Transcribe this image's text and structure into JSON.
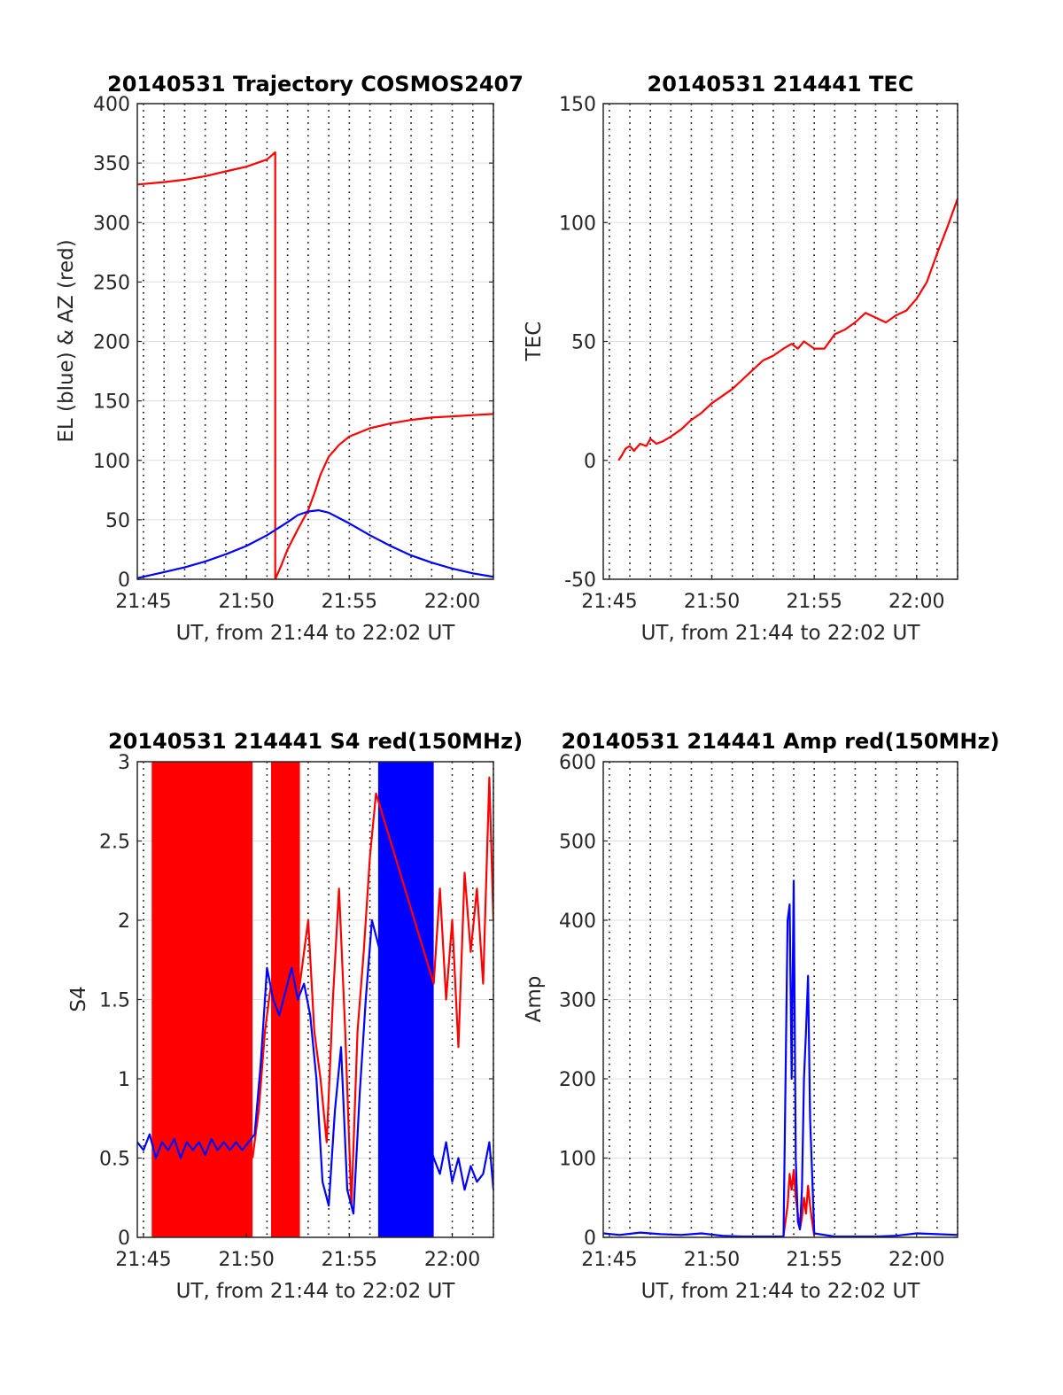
{
  "chart_data": [
    {
      "id": "traj",
      "type": "line",
      "title": "20140531 Trajectory COSMOS2407",
      "xlabel": "UT, from 21:44 to 22:02 UT",
      "ylabel": "EL (blue) & AZ (red)",
      "x_unit": "minutes after 21:44 UT",
      "xlim": [
        0.7,
        18
      ],
      "ylim": [
        0,
        400
      ],
      "xticks": [
        1,
        6,
        11,
        16
      ],
      "xtick_labels": [
        "21:45",
        "21:50",
        "21:55",
        "22:00"
      ],
      "yticks": [
        0,
        50,
        100,
        150,
        200,
        250,
        300,
        350,
        400
      ],
      "ytick_labels": [
        "0",
        "50",
        "100",
        "150",
        "200",
        "250",
        "300",
        "350",
        "400"
      ],
      "vgrid_dotted": true,
      "hgrid": true,
      "series": [
        {
          "color": "#ff0000",
          "x": [
            0.7,
            2,
            3,
            4,
            5,
            6,
            7,
            7.4,
            7.4,
            7.7,
            8,
            8.5,
            9,
            9.3,
            9.6,
            10,
            10.5,
            11,
            12,
            13,
            14,
            15,
            16,
            17,
            18
          ],
          "y": [
            332,
            334,
            336,
            339,
            343,
            347,
            353,
            359,
            0,
            12,
            25,
            42,
            58,
            72,
            88,
            103,
            113,
            120,
            127,
            131,
            134,
            136,
            137,
            138,
            139
          ]
        },
        {
          "color": "#0000ff",
          "x": [
            0.7,
            2,
            3,
            4,
            5,
            6,
            7,
            8,
            8.5,
            9,
            9.5,
            10,
            11,
            12,
            13,
            14,
            15,
            16,
            17,
            18
          ],
          "y": [
            1,
            6,
            10,
            15,
            21,
            28,
            37,
            48,
            54,
            57,
            58,
            56,
            47,
            37,
            28,
            20,
            14,
            9,
            5,
            2
          ]
        }
      ]
    },
    {
      "id": "tec",
      "type": "line",
      "title": "20140531 214441 TEC",
      "xlabel": "UT, from 21:44 to 22:02 UT",
      "ylabel": "TEC",
      "x_unit": "minutes after 21:44 UT",
      "xlim": [
        0.7,
        18
      ],
      "ylim": [
        -50,
        150
      ],
      "xticks": [
        1,
        6,
        11,
        16
      ],
      "xtick_labels": [
        "21:45",
        "21:50",
        "21:55",
        "22:00"
      ],
      "yticks": [
        -50,
        0,
        50,
        100,
        150
      ],
      "ytick_labels": [
        "-50",
        "0",
        "50",
        "100",
        "150"
      ],
      "vgrid_dotted": true,
      "hgrid": true,
      "series": [
        {
          "color": "#ff0000",
          "x": [
            1.45,
            1.6,
            1.8,
            2.0,
            2.2,
            2.5,
            2.8,
            3.0,
            3.3,
            3.6,
            4,
            4.5,
            5,
            5.5,
            6,
            6.5,
            7,
            7.5,
            8,
            8.5,
            9,
            9.5,
            9.9,
            10.2,
            10.5,
            11,
            11.5,
            12,
            12.5,
            13,
            13.5,
            14,
            14.5,
            15,
            15.5,
            16,
            16.5,
            17,
            17.5,
            18
          ],
          "y": [
            0,
            2,
            5,
            6,
            4,
            7,
            6,
            9,
            7,
            8,
            10,
            13,
            17,
            20,
            24,
            27,
            30,
            34,
            38,
            42,
            44,
            47,
            49,
            47,
            50,
            47,
            47,
            53,
            55,
            58,
            62,
            60,
            58,
            61,
            63,
            68,
            75,
            87,
            98,
            110
          ]
        }
      ]
    },
    {
      "id": "s4",
      "type": "line",
      "title": "20140531 214441 S4 red(150MHz)",
      "xlabel": "UT, from 21:44 to 22:02 UT",
      "ylabel": "S4",
      "x_unit": "minutes after 21:44 UT",
      "xlim": [
        0.7,
        18
      ],
      "ylim": [
        0,
        3
      ],
      "xticks": [
        1,
        6,
        11,
        16
      ],
      "xtick_labels": [
        "21:45",
        "21:50",
        "21:55",
        "22:00"
      ],
      "yticks": [
        0,
        0.5,
        1,
        1.5,
        2,
        2.5,
        3
      ],
      "ytick_labels": [
        "0",
        "0.5",
        "1",
        "1.5",
        "2",
        "2.5",
        "3"
      ],
      "vgrid_dotted": true,
      "hgrid": true,
      "bands": [
        {
          "color": "#ff0000",
          "x": [
            1.4,
            6.3
          ],
          "y": [
            0,
            3
          ]
        },
        {
          "color": "#ff0000",
          "x": [
            7.2,
            8.6
          ],
          "y": [
            0,
            3
          ]
        },
        {
          "color": "#0000ff",
          "x": [
            12.4,
            15.1
          ],
          "y": [
            0,
            3
          ]
        }
      ],
      "series": [
        {
          "color": "#ff0000",
          "x": [
            6.3,
            6.6,
            6.9,
            7.2,
            7.5,
            7.8,
            8.1,
            8.4,
            8.7,
            9.0,
            9.3,
            9.6,
            9.9,
            10.2,
            10.5,
            10.8,
            11.1,
            11.4,
            11.7,
            12.0,
            12.3,
            15.1,
            15.4,
            15.7,
            16.0,
            16.3,
            16.6,
            16.9,
            17.2,
            17.5,
            17.8,
            18.0
          ],
          "y": [
            0.5,
            0.8,
            1.3,
            1.6,
            1.5,
            1.7,
            1.5,
            1.4,
            1.7,
            2.0,
            1.3,
            1.0,
            0.6,
            1.5,
            2.2,
            1.3,
            0.2,
            1.3,
            1.8,
            2.4,
            2.8,
            1.6,
            2.2,
            1.5,
            2.0,
            1.2,
            2.3,
            1.8,
            2.2,
            1.6,
            2.9,
            2.0
          ]
        },
        {
          "color": "#0000ff",
          "x": [
            0.7,
            1.0,
            1.3,
            1.6,
            1.9,
            2.2,
            2.5,
            2.8,
            3.1,
            3.4,
            3.7,
            4.0,
            4.3,
            4.6,
            4.9,
            5.2,
            5.5,
            5.8,
            6.1,
            6.4,
            6.7,
            7.0,
            7.3,
            7.6,
            7.9,
            8.2,
            8.5,
            8.8,
            9.1,
            9.4,
            9.7,
            10.0,
            10.3,
            10.6,
            10.9,
            11.2,
            11.5,
            11.8,
            12.1,
            15.1,
            15.4,
            15.7,
            16.0,
            16.3,
            16.6,
            16.9,
            17.2,
            17.5,
            17.8,
            18.0
          ],
          "y": [
            0.6,
            0.55,
            0.65,
            0.5,
            0.6,
            0.55,
            0.62,
            0.5,
            0.6,
            0.55,
            0.6,
            0.52,
            0.62,
            0.55,
            0.6,
            0.55,
            0.6,
            0.55,
            0.6,
            0.65,
            1.1,
            1.7,
            1.5,
            1.4,
            1.55,
            1.7,
            1.5,
            1.6,
            1.4,
            1.0,
            0.35,
            0.2,
            0.8,
            1.2,
            0.3,
            0.15,
            0.9,
            1.5,
            2.0,
            0.5,
            0.4,
            0.6,
            0.35,
            0.5,
            0.3,
            0.45,
            0.35,
            0.4,
            0.6,
            0.3
          ]
        }
      ]
    },
    {
      "id": "amp",
      "type": "line",
      "title": "20140531 214441 Amp red(150MHz)",
      "xlabel": "UT, from 21:44 to 22:02 UT",
      "ylabel": "Amp",
      "x_unit": "minutes after 21:44 UT",
      "xlim": [
        0.7,
        18
      ],
      "ylim": [
        0,
        600
      ],
      "xticks": [
        1,
        6,
        11,
        16
      ],
      "xtick_labels": [
        "21:45",
        "21:50",
        "21:55",
        "22:00"
      ],
      "yticks": [
        0,
        100,
        200,
        300,
        400,
        500,
        600
      ],
      "ytick_labels": [
        "0",
        "100",
        "200",
        "300",
        "400",
        "500",
        "600"
      ],
      "vgrid_dotted": true,
      "hgrid": true,
      "series": [
        {
          "color": "#ff0000",
          "x": [
            9.5,
            9.7,
            9.8,
            9.9,
            10.0,
            10.1,
            10.2,
            10.3,
            10.4,
            10.5,
            10.6,
            10.7,
            10.8,
            10.9,
            11.0
          ],
          "y": [
            2,
            40,
            80,
            60,
            85,
            50,
            30,
            10,
            25,
            50,
            30,
            65,
            40,
            20,
            2
          ]
        },
        {
          "color": "#0000ff",
          "x": [
            0.7,
            1.5,
            2.5,
            3.5,
            4.5,
            5.5,
            6.5,
            7.5,
            8.5,
            9.5,
            9.7,
            9.8,
            9.9,
            10.0,
            10.1,
            10.2,
            10.3,
            10.4,
            10.5,
            10.6,
            10.7,
            10.8,
            10.9,
            11.0,
            12,
            13,
            14,
            15,
            16,
            17,
            18
          ],
          "y": [
            5,
            3,
            6,
            4,
            3,
            5,
            2,
            1,
            1,
            1,
            400,
            420,
            200,
            450,
            100,
            20,
            10,
            60,
            200,
            260,
            330,
            150,
            80,
            5,
            1,
            1,
            1,
            2,
            5,
            4,
            3
          ]
        }
      ]
    }
  ]
}
